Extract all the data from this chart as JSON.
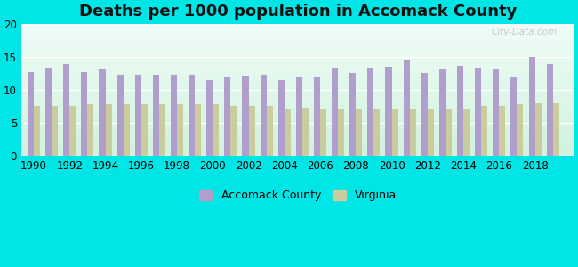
{
  "title": "Deaths per 1000 population in Accomack County",
  "years": [
    1990,
    1991,
    1992,
    1993,
    1994,
    1995,
    1996,
    1997,
    1998,
    1999,
    2000,
    2001,
    2002,
    2003,
    2004,
    2005,
    2006,
    2007,
    2008,
    2009,
    2010,
    2011,
    2012,
    2013,
    2014,
    2015,
    2016,
    2017,
    2018,
    2019
  ],
  "accomack": [
    12.6,
    13.4,
    13.9,
    12.7,
    13.1,
    12.2,
    12.3,
    12.3,
    12.3,
    12.3,
    11.5,
    12.0,
    12.1,
    12.3,
    11.5,
    12.0,
    11.9,
    13.4,
    12.5,
    13.4,
    13.5,
    14.6,
    12.5,
    13.1,
    13.6,
    13.4,
    13.1,
    12.0,
    15.0,
    13.9
  ],
  "virginia": [
    7.6,
    7.6,
    7.5,
    7.8,
    7.8,
    7.8,
    7.8,
    7.8,
    7.8,
    7.8,
    7.8,
    7.6,
    7.6,
    7.5,
    7.2,
    7.3,
    7.2,
    7.0,
    7.0,
    7.0,
    7.0,
    7.0,
    7.2,
    7.2,
    7.2,
    7.5,
    7.5,
    7.8,
    8.0,
    8.0
  ],
  "accomack_color": "#b09fcc",
  "virginia_color": "#c8cc9f",
  "background_color": "#00e5e5",
  "ylim": [
    0,
    20
  ],
  "yticks": [
    0,
    5,
    10,
    15,
    20
  ],
  "legend_accomack": "Accomack County",
  "legend_virginia": "Virginia",
  "title_fontsize": 13,
  "bar_width": 0.35
}
